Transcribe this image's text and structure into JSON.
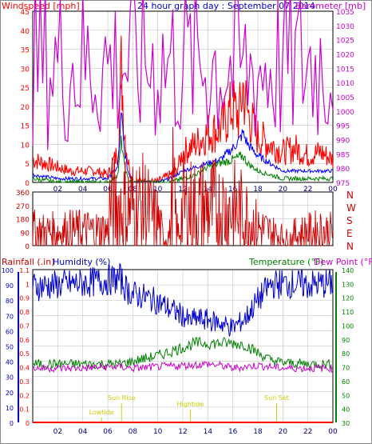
{
  "colors": {
    "windspeed": "#ff0000",
    "gust": "#ff0000",
    "avg_wind": "#0000ff",
    "wind_green": "#008000",
    "barometer": "#cc00cc",
    "direction": "#cc0000",
    "rainfall": "#ff0000",
    "humidity": "#0000cc",
    "temperature": "#008000",
    "dew_point": "#cc00cc",
    "tide_markers": "#cccc00",
    "background": "#ffffff",
    "grid": "#999999"
  },
  "chart_data": [
    {
      "type": "line",
      "panel": "wind-barometer",
      "title": "24 hour graph day : September 07 2014",
      "left_axis_label": "Windspeed [mph]",
      "right_axis_label": "Barometer [mb]",
      "x_tick_labels": [
        "02",
        "04",
        "06",
        "08",
        "10",
        "12",
        "14",
        "16",
        "18",
        "20",
        "22",
        "00"
      ],
      "left_ticks": [
        "0",
        "5",
        "10",
        "15",
        "20",
        "25",
        "30",
        "35",
        "40",
        "45"
      ],
      "right_ticks": [
        "975",
        "980",
        "985",
        "990",
        "995",
        "1000",
        "1005",
        "1010",
        "1015",
        "1020",
        "1025",
        "1030",
        "1035"
      ],
      "ylim_left": [
        0,
        45
      ],
      "ylim_right": [
        975,
        1035
      ],
      "grid": true,
      "series": [
        {
          "key": "gust",
          "color_key": "windspeed",
          "x": [
            0,
            1,
            2,
            3,
            4,
            5,
            6,
            6.8,
            7.1,
            7.3,
            7.6,
            8,
            9,
            10,
            11,
            11.5,
            12,
            13,
            14,
            15,
            16,
            16.5,
            16.8,
            17.2,
            18,
            19,
            20,
            21,
            22,
            23,
            24
          ],
          "y": [
            6,
            5,
            4,
            3,
            3,
            3,
            2,
            8,
            31,
            15,
            6,
            0,
            0,
            0,
            2,
            3,
            8,
            10,
            13,
            14,
            20,
            17,
            25,
            18,
            12,
            10,
            8,
            9,
            7,
            8,
            6
          ]
        },
        {
          "key": "avg",
          "color_key": "avg_wind",
          "x": [
            0,
            2,
            4,
            6,
            6.8,
            7.1,
            7.3,
            7.6,
            8,
            10,
            11,
            12,
            13,
            14,
            15,
            16,
            16.5,
            16.8,
            17.2,
            18,
            19,
            20,
            21,
            22,
            23,
            24
          ],
          "y": [
            2,
            1,
            1,
            1,
            4,
            18,
            9,
            3,
            0,
            0,
            1,
            3,
            4,
            5,
            6,
            9,
            11,
            13,
            10,
            7,
            5,
            3,
            3,
            3,
            3,
            3
          ]
        },
        {
          "key": "green",
          "color_key": "wind_green",
          "x": [
            0,
            2,
            4,
            6,
            6.8,
            7.1,
            7.3,
            7.6,
            8,
            10,
            11,
            12,
            13,
            14,
            15,
            16,
            16.8,
            17.2,
            18,
            20,
            22,
            24
          ],
          "y": [
            1,
            0,
            0,
            0,
            2,
            11,
            5,
            1,
            0,
            0,
            0,
            1,
            2,
            4,
            5,
            6,
            7,
            5,
            3,
            1,
            1,
            1
          ]
        },
        {
          "key": "barometer",
          "color_key": "barometer",
          "axis": "right",
          "x": [
            0,
            2,
            4,
            6,
            8,
            10,
            12,
            14,
            16,
            17,
            18,
            19,
            20,
            22,
            24
          ],
          "y": [
            1017,
            1016.5,
            1016,
            1016.2,
            1016.5,
            1016.8,
            1017,
            1016.9,
            1015,
            1014,
            1014.6,
            1015.5,
            1016,
            1016.5,
            1017
          ]
        }
      ]
    },
    {
      "type": "line",
      "panel": "wind-direction",
      "ylabel_ticks": [
        "360",
        "270",
        "180",
        "90",
        "0"
      ],
      "right_labels": [
        "N",
        "W",
        "S",
        "E",
        "N"
      ],
      "ylim": [
        0,
        360
      ],
      "grid": true,
      "series": [
        {
          "key": "direction",
          "color_key": "direction",
          "x": [
            0,
            1,
            2,
            3,
            4,
            5,
            6,
            6.1,
            6.8,
            7.5,
            8,
            9,
            9.5,
            10,
            10.5,
            11,
            11.2,
            11.6,
            12,
            13,
            14,
            15,
            16,
            17,
            18,
            19,
            20,
            20.5,
            21,
            22,
            23,
            24
          ],
          "y": [
            100,
            90,
            95,
            100,
            100,
            100,
            100,
            240,
            255,
            250,
            250,
            250,
            190,
            170,
            40,
            80,
            350,
            60,
            250,
            240,
            250,
            240,
            240,
            200,
            120,
            90,
            60,
            40,
            80,
            90,
            100,
            90
          ]
        }
      ]
    },
    {
      "type": "line",
      "panel": "rain-humidity-temperature",
      "left_axis_label": "Rainfall (.in)",
      "middle_axis_label": "Humidity (%)",
      "right_axis_label": "Temperature (°F)",
      "right_axis_label2": "Dew Point (°F)",
      "rain_ticks": [
        "0",
        "0.1",
        "0.2",
        "0.3",
        "0.4",
        "0.5",
        "0.6",
        "0.7",
        "0.8",
        "0.9",
        "1",
        "1.1"
      ],
      "humidity_ticks": [
        "0",
        "10",
        "20",
        "30",
        "40",
        "50",
        "60",
        "70",
        "80",
        "90",
        "100"
      ],
      "temp_ticks": [
        "30",
        "40",
        "50",
        "60",
        "70",
        "80",
        "90",
        "100",
        "110",
        "120",
        "130",
        "140"
      ],
      "ylim_rain": [
        0,
        1.1
      ],
      "ylim_humidity": [
        0,
        100
      ],
      "ylim_temp": [
        30,
        140
      ],
      "grid": true,
      "annotations": [
        {
          "label": "Lowtide",
          "x": 5.5
        },
        {
          "label": "Sun Rise",
          "x": 7.1
        },
        {
          "label": "Hightide",
          "x": 12.6
        },
        {
          "label": "Sun Set",
          "x": 19.5
        }
      ],
      "series": [
        {
          "key": "humidity",
          "color_key": "humidity",
          "x": [
            0,
            2,
            4,
            6,
            7,
            7.5,
            8,
            9,
            10,
            11,
            12,
            12.5,
            13,
            14,
            15,
            16,
            17,
            18,
            19,
            20,
            22,
            24
          ],
          "y": [
            89,
            90,
            91,
            93,
            94,
            87,
            84,
            82,
            79,
            74,
            70,
            66,
            68,
            67,
            65,
            62,
            68,
            80,
            90,
            91,
            90,
            91
          ]
        },
        {
          "key": "temperature",
          "color_key": "temperature",
          "x": [
            0,
            2,
            4,
            6,
            7,
            8,
            9,
            10,
            11,
            12,
            13,
            14,
            15,
            16,
            17,
            18,
            19,
            20,
            22,
            24
          ],
          "y": [
            72,
            72,
            72,
            72,
            72,
            74,
            76,
            78,
            81,
            84,
            87,
            87,
            87,
            87,
            86,
            80,
            75,
            73,
            72,
            72
          ]
        },
        {
          "key": "dew_point",
          "color_key": "dew_point",
          "x": [
            0,
            2,
            4,
            6,
            7,
            8,
            10,
            12,
            14,
            15,
            16,
            17,
            18,
            20,
            22,
            24
          ],
          "y": [
            69,
            69,
            69,
            70,
            70,
            69,
            70,
            71,
            72,
            71,
            69,
            70,
            71,
            69,
            69,
            69
          ]
        },
        {
          "key": "rainfall",
          "color_key": "rainfall",
          "axis": "rain",
          "x": [
            0,
            24
          ],
          "y": [
            0,
            0
          ]
        }
      ]
    }
  ]
}
